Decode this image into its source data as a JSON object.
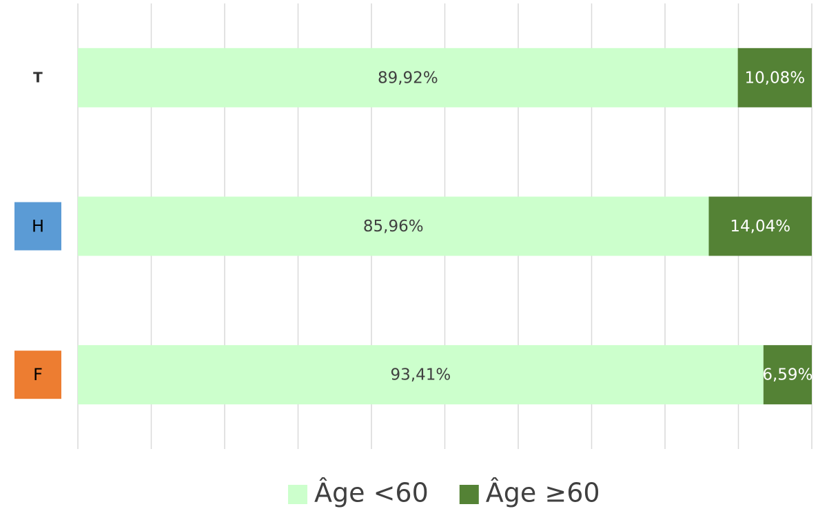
{
  "chart_data": {
    "type": "stacked_barh",
    "categories": [
      "T",
      "H",
      "F"
    ],
    "category_colors": [
      null,
      "#5b9bd5",
      "#ed7d31"
    ],
    "series": [
      {
        "name": "Âge <60",
        "color": "#ccffcc",
        "values": [
          89.92,
          85.96,
          93.41
        ],
        "value_labels": [
          "89,92%",
          "85,96%",
          "93,41%"
        ]
      },
      {
        "name": "Âge ≥60",
        "color": "#548235",
        "values": [
          10.08,
          14.04,
          6.59
        ],
        "value_labels": [
          "10,08%",
          "14,04%",
          "6,59%"
        ]
      }
    ],
    "xlim": [
      0,
      100
    ],
    "xticks": [
      0,
      10,
      20,
      30,
      40,
      50,
      60,
      70,
      80,
      90,
      100
    ],
    "grid": true,
    "legend": "bottom"
  }
}
